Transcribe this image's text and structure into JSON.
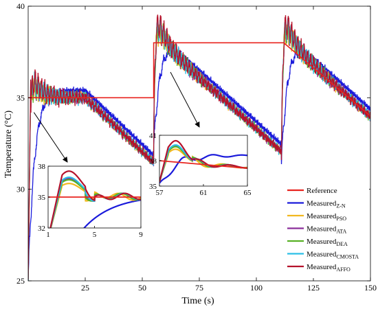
{
  "chart_data": {
    "type": "line",
    "xlabel": "Time (s)",
    "ylabel": "Temperature (°C)",
    "xlim": [
      0,
      150
    ],
    "ylim": [
      25,
      40
    ],
    "xticks": [
      25,
      50,
      75,
      100,
      125,
      150
    ],
    "yticks": [
      25,
      30,
      35,
      40
    ],
    "legend": {
      "position": "bottom-right",
      "entries": [
        {
          "text": "Reference",
          "sub": "",
          "color": "#e8231e"
        },
        {
          "text": "Measured",
          "sub": "Z-N",
          "color": "#1a1adb"
        },
        {
          "text": "Measured",
          "sub": "PSO",
          "color": "#f2b81f"
        },
        {
          "text": "Measured",
          "sub": "ATA",
          "color": "#8a2e9a"
        },
        {
          "text": "Measured",
          "sub": "DEA",
          "color": "#58b025"
        },
        {
          "text": "Measured",
          "sub": "CMOSTA",
          "color": "#2bbfe6"
        },
        {
          "text": "Measured",
          "sub": "AFFO",
          "color": "#b5122b"
        }
      ]
    },
    "reference": {
      "name": "Reference",
      "points": [
        [
          0,
          35
        ],
        [
          55,
          35
        ],
        [
          55,
          38
        ],
        [
          58,
          38
        ],
        [
          58,
          38
        ],
        [
          112,
          38
        ],
        [
          112,
          38
        ],
        [
          150,
          34
        ]
      ]
    },
    "setpoints": [
      {
        "t_start": 0,
        "peak_t": 2.5,
        "value": 35
      },
      {
        "t_start": 55,
        "peak_t": 58,
        "value": 38
      },
      {
        "t_start": 111,
        "peak_t": 114,
        "value": 38
      }
    ],
    "insets": [
      {
        "xlim": [
          1,
          9
        ],
        "ylim": [
          32,
          38
        ],
        "xticks": [
          1,
          5,
          9
        ],
        "yticks": [
          32,
          35,
          38
        ]
      },
      {
        "xlim": [
          57,
          65
        ],
        "ylim": [
          35,
          41
        ],
        "xticks": [
          57,
          61,
          65
        ],
        "yticks": [
          35,
          38,
          41
        ]
      }
    ]
  }
}
